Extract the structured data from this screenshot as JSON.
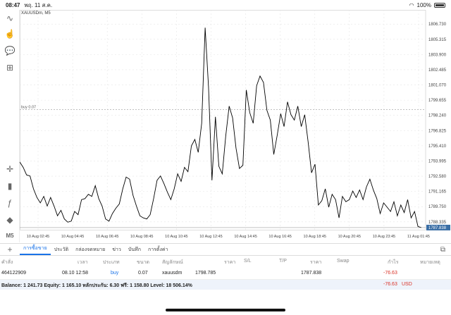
{
  "status_bar": {
    "time": "08:47",
    "date": "พฤ. 11 ส.ค.",
    "battery": "100%",
    "wifi_icon": "wifi-icon"
  },
  "toolbar": {
    "icons": [
      "tilde-icon",
      "hand-up-icon",
      "chat-icon",
      "add-document-icon",
      "crosshair-icon",
      "candles-icon",
      "function-icon",
      "shapes-icon",
      "timeframe-icon"
    ],
    "timeframe_label": "M5"
  },
  "chart": {
    "symbol": "XAUUSDm, M5",
    "buy_line_label": "buy 0.07"
  },
  "chart_data": {
    "type": "line",
    "title": "",
    "ylim": [
      1787.6,
      1807.4
    ],
    "y_ticks": [
      "1806.730",
      "1805.315",
      "1803.900",
      "1802.485",
      "1801.070",
      "1799.655",
      "1798.240",
      "1796.825",
      "1795.410",
      "1793.995",
      "1792.580",
      "1791.165",
      "1789.750",
      "1788.335"
    ],
    "x_ticks": [
      "10 Aug 02:45",
      "10 Aug 04:45",
      "10 Aug 06:45",
      "10 Aug 08:45",
      "10 Aug 10:45",
      "10 Aug 12:45",
      "10 Aug 14:45",
      "10 Aug 16:45",
      "10 Aug 18:45",
      "10 Aug 20:45",
      "10 Aug 23:45",
      "11 Aug 01:45"
    ],
    "current_price_label": "1787.838",
    "buy_price": 1798.785,
    "values": [
      1793.9,
      1793.4,
      1792.7,
      1792.6,
      1791.4,
      1790.6,
      1790.1,
      1790.7,
      1789.8,
      1790.6,
      1789.8,
      1788.9,
      1789.4,
      1788.6,
      1788.3,
      1788.4,
      1789.3,
      1789.0,
      1790.4,
      1790.5,
      1790.9,
      1790.7,
      1791.7,
      1790.5,
      1789.8,
      1788.6,
      1788.4,
      1789.1,
      1789.6,
      1790.0,
      1791.4,
      1792.5,
      1792.3,
      1790.8,
      1789.8,
      1788.9,
      1788.7,
      1788.6,
      1789.0,
      1790.5,
      1792.2,
      1792.6,
      1791.9,
      1791.1,
      1790.4,
      1791.4,
      1792.8,
      1792.1,
      1793.4,
      1793.0,
      1795.4,
      1796.0,
      1794.8,
      1797.5,
      1806.4,
      1800.9,
      1792.2,
      1798.1,
      1793.5,
      1792.8,
      1796.3,
      1799.1,
      1798.0,
      1795.2,
      1793.3,
      1793.6,
      1800.6,
      1798.5,
      1797.5,
      1801.0,
      1801.9,
      1801.3,
      1798.7,
      1797.8,
      1794.6,
      1796.4,
      1798.4,
      1797.2,
      1799.5,
      1798.3,
      1797.8,
      1799.1,
      1797.2,
      1798.3,
      1795.8,
      1792.9,
      1793.7,
      1789.9,
      1790.3,
      1791.4,
      1789.7,
      1790.9,
      1790.4,
      1788.7,
      1790.7,
      1790.2,
      1790.4,
      1791.2,
      1790.6,
      1791.3,
      1790.4,
      1791.6,
      1792.3,
      1791.3,
      1790.5,
      1789.1,
      1790.1,
      1789.7,
      1789.3,
      1790.2,
      1788.9,
      1789.9,
      1789.2,
      1790.4,
      1788.7,
      1789.3,
      1787.9,
      1787.8
    ],
    "grid": true,
    "line_color": "#000000",
    "price_tag_color": "#3a6ea5"
  },
  "tabs": [
    "การซื้อขาย",
    "ประวัติ",
    "กล่องจดหมาย",
    "ข่าว",
    "บันทึก",
    "การตั้งค่า"
  ],
  "table": {
    "headers": {
      "ticket": "คำสั่ง",
      "time": "เวลา",
      "type": "ประเภท",
      "volume": "ขนาด",
      "symbol": "สัญลักษณ์",
      "price": "ราคา",
      "sl": "S/L",
      "tp": "T/P",
      "cur_price": "ราคา",
      "swap": "Swap",
      "profit": "กำไร",
      "comment": "หมายเหตุ"
    },
    "position": {
      "ticket": "464122909",
      "time": "08.10 12:58",
      "type": "buy",
      "volume": "0.07",
      "symbol": "xauusdm",
      "price": "1798.785",
      "cur_price": "1787.838",
      "profit": "-76.63"
    }
  },
  "balance": {
    "text": "Balance: 1 241.73 Equity: 1 165.10 หลักประกัน: 6.30 ฟรี: 1 158.80 Level: 18 506.14%",
    "profit": "-76.63",
    "currency": "USD"
  },
  "colors": {
    "accent": "#1a73e8",
    "loss": "#d93025"
  }
}
